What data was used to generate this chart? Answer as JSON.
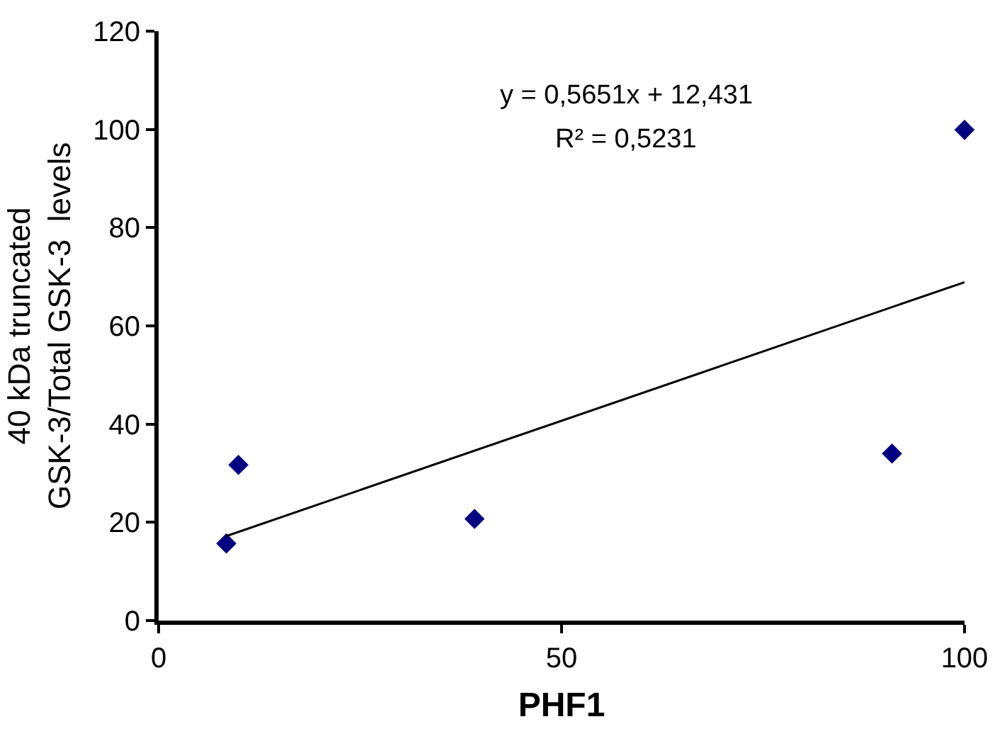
{
  "chart_data": {
    "type": "scatter",
    "xlabel": "PHF1",
    "ylabel": "40 kDa truncated GSK-3/Total GSK-3  levels",
    "xlim": [
      0,
      100
    ],
    "xticks": [
      0,
      50,
      100
    ],
    "ylim": [
      0,
      120
    ],
    "yticks": [
      0,
      20,
      40,
      60,
      80,
      100,
      120
    ],
    "grid": false,
    "marker": "diamond",
    "series": [
      {
        "color": "#000080",
        "x": [
          8.4,
          9.9,
          39.2,
          91,
          100
        ],
        "values": [
          15.7,
          31.7,
          20.7,
          34,
          99.9
        ]
      },
      {
        "type": "line",
        "marker": "none",
        "color": "#000000",
        "line_style": "solid",
        "x": [
          8.4,
          100
        ],
        "values": [
          17.2,
          68.9
        ]
      }
    ],
    "annotations": [
      "y = 0,5651x + 12,431",
      "R² = 0,5231"
    ]
  }
}
